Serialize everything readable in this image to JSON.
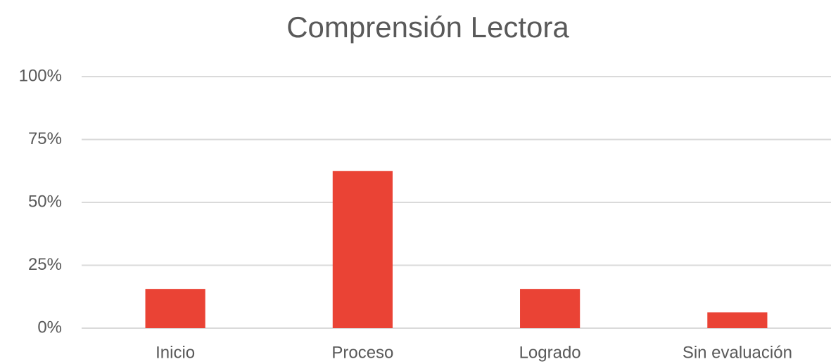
{
  "chart_data": {
    "type": "bar",
    "title": "Comprensión Lectora",
    "categories": [
      "Inicio",
      "Proceso",
      "Logrado",
      "Sin evaluación"
    ],
    "values": [
      15.6,
      62.5,
      15.6,
      6.3
    ],
    "color": "#ea4335",
    "ylim": [
      0,
      100
    ],
    "yticks": [
      {
        "value": 0,
        "label": "0%"
      },
      {
        "value": 25,
        "label": "25%"
      },
      {
        "value": 50,
        "label": "50%"
      },
      {
        "value": 75,
        "label": "75%"
      },
      {
        "value": 100,
        "label": "100%"
      }
    ],
    "grid": true
  }
}
